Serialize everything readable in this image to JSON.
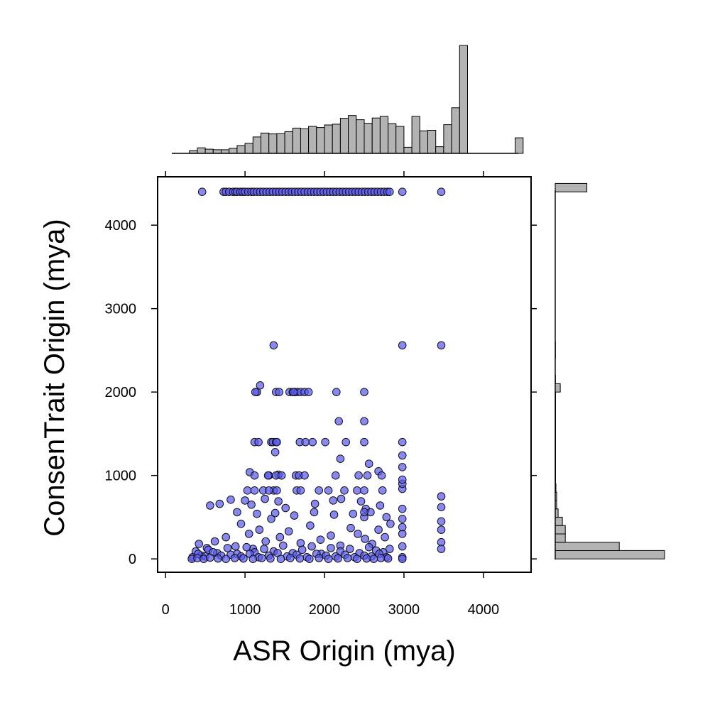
{
  "chart_data": {
    "type": "scatter",
    "title": "",
    "xlabel": "ASR Origin (mya)",
    "ylabel": "ConsenTrait Origin (mya)",
    "xlim": [
      -100,
      4600
    ],
    "ylim": [
      -160,
      4580
    ],
    "xticks": [
      "0",
      "1000",
      "2000",
      "3000",
      "4000"
    ],
    "yticks": [
      "0",
      "1000",
      "2000",
      "3000",
      "4000"
    ],
    "grid": false,
    "legend": "none",
    "colors": {
      "point_fill": "#5a5af0",
      "point_stroke": "#111111",
      "hist_fill": "#b3b3b3",
      "hist_stroke": "#000000"
    },
    "series": [
      {
        "x": [
          460,
          730,
          760,
          800,
          850,
          880,
          900,
          940,
          970,
          1000,
          1040,
          1080,
          1110,
          1150,
          1190,
          1230,
          1270,
          1310,
          1350,
          1390,
          1430,
          1470,
          1510,
          1550,
          1590,
          1630,
          1670,
          1710,
          1750,
          1790,
          1830,
          1870,
          1910,
          1950,
          1990,
          2030,
          2070,
          2110,
          2150,
          2190,
          2230,
          2270,
          2310,
          2350,
          2390,
          2430,
          2470,
          2510,
          2550,
          2590,
          2630,
          2670,
          2710,
          2750,
          2790,
          2820,
          2980,
          3470,
          1360,
          2980,
          3470,
          1150,
          1190,
          1130,
          1390,
          1430,
          1560,
          1600,
          1630,
          1660,
          1700,
          1750,
          1800,
          2150,
          2500,
          1610,
          2180,
          2500,
          1120,
          1170,
          1330,
          1350,
          1390,
          1400,
          1690,
          1760,
          1850,
          2010,
          2270,
          2500,
          2980,
          1380,
          2980,
          2200,
          2560,
          1060,
          1420,
          1300,
          2680,
          2980,
          1120,
          1290,
          1390,
          1460,
          1640,
          1680,
          1750,
          2140,
          2430,
          2540,
          2720,
          1030,
          1360,
          1120,
          1230,
          1300,
          1400,
          1650,
          1700,
          1930,
          2050,
          2250,
          2410,
          2500,
          3470,
          2730,
          2980,
          560,
          680,
          820,
          1000,
          1080,
          1250,
          1420,
          1510,
          1880,
          2110,
          2210,
          2460,
          2520,
          2700,
          420,
          520,
          620,
          760,
          880,
          950,
          1050,
          1100,
          1180,
          1260,
          1330,
          1440,
          1550,
          1700,
          1820,
          1950,
          2080,
          2200,
          2330,
          2420,
          2510,
          2600,
          2680,
          2760,
          2830,
          2980,
          3470,
          380,
          450,
          540,
          650,
          780,
          900,
          1020,
          1120,
          1240,
          1360,
          1480,
          1600,
          1720,
          1840,
          1960,
          2080,
          2200,
          2320,
          2440,
          2560,
          2650,
          2740,
          2820,
          2980,
          3470,
          340,
          410,
          500,
          600,
          700,
          820,
          950,
          1060,
          1170,
          1300,
          1410,
          1530,
          1650,
          1780,
          1900,
          2020,
          2140,
          2260,
          2380,
          2500,
          2590,
          2690,
          2780,
          2980,
          3470,
          330,
          400,
          480,
          560,
          660,
          760,
          870,
          980,
          1100,
          1210,
          1320,
          1450,
          1570,
          1690,
          1810,
          1930,
          2050,
          2170,
          2290,
          2410,
          2530,
          2620,
          2710,
          2800,
          2980,
          900,
          1150,
          1380,
          1620,
          1870,
          2120,
          2360,
          2580,
          2980,
          3470,
          2980,
          2500,
          2780,
          2980,
          3470,
          2980,
          2980,
          2500
        ],
        "y": [
          4400,
          4400,
          4400,
          4400,
          4400,
          4400,
          4400,
          4400,
          4400,
          4400,
          4400,
          4400,
          4400,
          4400,
          4400,
          4400,
          4400,
          4400,
          4400,
          4400,
          4400,
          4400,
          4400,
          4400,
          4400,
          4400,
          4400,
          4400,
          4400,
          4400,
          4400,
          4400,
          4400,
          4400,
          4400,
          4400,
          4400,
          4400,
          4400,
          4400,
          4400,
          4400,
          4400,
          4400,
          4400,
          4400,
          4400,
          4400,
          4400,
          4400,
          4400,
          4400,
          4400,
          4400,
          4400,
          4400,
          4400,
          4400,
          2560,
          2560,
          2560,
          2000,
          2080,
          2000,
          2000,
          2000,
          2000,
          2000,
          2000,
          2000,
          2000,
          2000,
          2000,
          2000,
          2000,
          2000,
          1650,
          1650,
          1400,
          1400,
          1400,
          1400,
          1400,
          1400,
          1400,
          1400,
          1400,
          1400,
          1400,
          1400,
          1400,
          1280,
          1240,
          1200,
          1140,
          1040,
          1010,
          1000,
          1050,
          1100,
          1000,
          1000,
          1000,
          1000,
          1000,
          1000,
          1000,
          1000,
          1000,
          1000,
          1000,
          820,
          820,
          820,
          820,
          820,
          820,
          820,
          820,
          820,
          820,
          820,
          820,
          820,
          750,
          820,
          840,
          640,
          660,
          710,
          700,
          650,
          720,
          690,
          610,
          660,
          700,
          720,
          690,
          600,
          640,
          180,
          130,
          210,
          260,
          150,
          420,
          300,
          120,
          350,
          210,
          480,
          260,
          330,
          190,
          400,
          230,
          280,
          160,
          370,
          300,
          240,
          180,
          350,
          260,
          420,
          300,
          350,
          90,
          40,
          110,
          70,
          130,
          60,
          140,
          80,
          120,
          90,
          160,
          70,
          110,
          150,
          60,
          130,
          90,
          120,
          70,
          140,
          100,
          80,
          120,
          150,
          200,
          20,
          60,
          30,
          80,
          40,
          50,
          30,
          60,
          20,
          40,
          70,
          30,
          50,
          20,
          60,
          40,
          30,
          50,
          20,
          40,
          30,
          60,
          20,
          20,
          120,
          0,
          10,
          0,
          15,
          5,
          0,
          10,
          5,
          0,
          10,
          5,
          0,
          10,
          5,
          0,
          10,
          0,
          5,
          10,
          0,
          5,
          0,
          10,
          5,
          0,
          560,
          540,
          550,
          520,
          560,
          530,
          540,
          560,
          600,
          620,
          480,
          500,
          500,
          380,
          450,
          900,
          950,
          560
        ]
      }
    ],
    "top_histogram": {
      "bins_start": 300,
      "bin_width": 100,
      "counts": [
        1,
        2,
        1.5,
        1.3,
        1.3,
        1.8,
        2.8,
        3.6,
        5.9,
        7.3,
        7.0,
        7.1,
        7.8,
        9.1,
        8.8,
        9.7,
        9.3,
        10.2,
        10.5,
        12.6,
        13.6,
        12.1,
        10.8,
        12.7,
        13.3,
        10.7,
        9.7,
        2.2,
        13.3,
        8.1,
        8.3,
        2.4,
        10.3,
        16.4,
        38.8,
        0,
        0,
        0,
        0,
        0,
        0,
        5.6
      ]
    },
    "right_histogram": {
      "bins_start": 0,
      "bin_width": 100,
      "counts": [
        152,
        89,
        14,
        14,
        10,
        4,
        2,
        2,
        1,
        0.5,
        0.5,
        0.5,
        0.5,
        0.5,
        0.5,
        0.5,
        0.5,
        0.5,
        0.5,
        0.5,
        7,
        0.3,
        0,
        0,
        0.3,
        0.3,
        0,
        0,
        0,
        0,
        0,
        0,
        0,
        0,
        0,
        0,
        0,
        0,
        0,
        0,
        0,
        0,
        0,
        0,
        44
      ]
    }
  }
}
